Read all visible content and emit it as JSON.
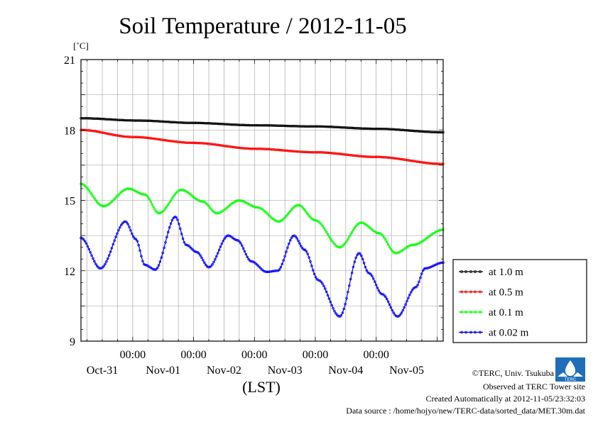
{
  "chart_data": {
    "type": "line",
    "title": "Soil Temperature / 2012-11-05",
    "ylabel": "[˚C]",
    "xlabel": "(LST)",
    "ylim": [
      9,
      21
    ],
    "xlim": [
      -0.85,
      5.1
    ],
    "yticks": [
      9,
      12,
      15,
      18,
      21
    ],
    "x_time_labels": [
      "00:00",
      "00:00",
      "00:00",
      "00:00",
      "00:00"
    ],
    "x_date_labels": [
      "Oct-31",
      "Nov-01",
      "Nov-02",
      "Nov-03",
      "Nov-04",
      "Nov-05"
    ],
    "x_unit": "days (0 = Nov-01 00:00)",
    "grid": true,
    "legend_position": "right",
    "series": [
      {
        "name": "at 1.0 m",
        "color": "#000000",
        "points": [
          [
            -0.85,
            18.5
          ],
          [
            0.1,
            18.4
          ],
          [
            1.0,
            18.3
          ],
          [
            2.0,
            18.2
          ],
          [
            3.0,
            18.15
          ],
          [
            4.0,
            18.05
          ],
          [
            5.1,
            17.9
          ]
        ]
      },
      {
        "name": "at 0.5 m",
        "color": "#ff0000",
        "points": [
          [
            -0.85,
            18.0
          ],
          [
            0.0,
            17.7
          ],
          [
            1.0,
            17.45
          ],
          [
            2.0,
            17.2
          ],
          [
            3.0,
            17.05
          ],
          [
            4.0,
            16.85
          ],
          [
            5.1,
            16.55
          ]
        ]
      },
      {
        "name": "at 0.1 m",
        "color": "#00ff00",
        "points": [
          [
            -0.85,
            15.7
          ],
          [
            -0.48,
            14.75
          ],
          [
            -0.07,
            15.5
          ],
          [
            0.2,
            15.25
          ],
          [
            0.43,
            14.45
          ],
          [
            0.8,
            15.45
          ],
          [
            1.15,
            14.95
          ],
          [
            1.38,
            14.45
          ],
          [
            1.75,
            15.0
          ],
          [
            2.05,
            14.7
          ],
          [
            2.4,
            14.1
          ],
          [
            2.72,
            14.8
          ],
          [
            3.0,
            14.15
          ],
          [
            3.4,
            13.0
          ],
          [
            3.75,
            14.05
          ],
          [
            4.05,
            13.6
          ],
          [
            4.32,
            12.75
          ],
          [
            4.6,
            13.1
          ],
          [
            5.1,
            13.75
          ]
        ]
      },
      {
        "name": "at 0.02 m",
        "color": "#0000ff",
        "points": [
          [
            -0.85,
            13.4
          ],
          [
            -0.53,
            12.1
          ],
          [
            -0.12,
            14.1
          ],
          [
            0.05,
            13.35
          ],
          [
            0.2,
            12.25
          ],
          [
            0.37,
            12.05
          ],
          [
            0.7,
            14.3
          ],
          [
            0.88,
            13.1
          ],
          [
            1.05,
            12.8
          ],
          [
            1.25,
            12.15
          ],
          [
            1.57,
            13.5
          ],
          [
            1.72,
            13.3
          ],
          [
            1.95,
            12.4
          ],
          [
            2.2,
            11.95
          ],
          [
            2.38,
            12.0
          ],
          [
            2.65,
            13.5
          ],
          [
            2.82,
            12.9
          ],
          [
            3.05,
            11.6
          ],
          [
            3.4,
            10.05
          ],
          [
            3.72,
            12.75
          ],
          [
            3.88,
            11.9
          ],
          [
            4.1,
            11.0
          ],
          [
            4.35,
            10.05
          ],
          [
            4.65,
            11.3
          ],
          [
            4.8,
            12.1
          ],
          [
            5.1,
            12.35
          ]
        ]
      }
    ]
  },
  "footer": {
    "copyright": "©TERC, Univ. Tsukuba",
    "observed": "Observed at TERC Tower site",
    "created": "Created Automatically at 2012-11-05/23:32:03",
    "source": "Data source : /home/hojyo/new/TERC-data/sorted_data/MET.30m.dat",
    "logo_text": "TERC"
  }
}
